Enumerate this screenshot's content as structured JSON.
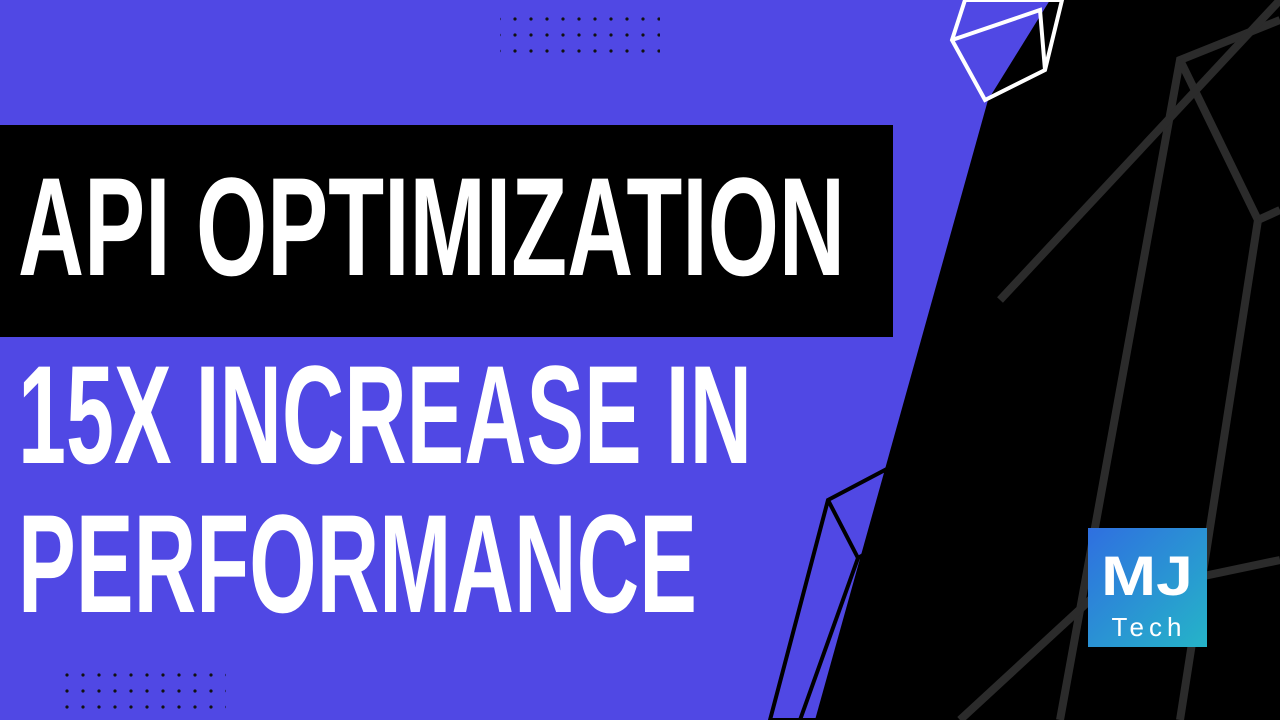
{
  "title": "API OPTIMIZATION",
  "subtitle_lines": [
    "15X INCREASE IN",
    "PERFORMANCE"
  ],
  "logo": {
    "initials": "MJ",
    "name": "Tech"
  }
}
